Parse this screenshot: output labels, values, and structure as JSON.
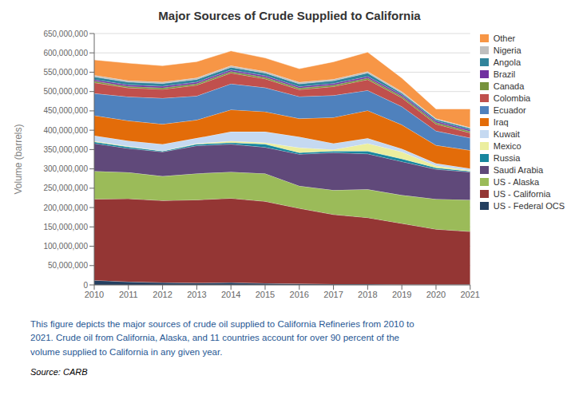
{
  "chart_data": {
    "type": "area",
    "title": "Major Sources of Crude Supplied to California",
    "y_label": "Volume (barrels)",
    "x": [
      2010,
      2011,
      2012,
      2013,
      2014,
      2015,
      2016,
      2017,
      2018,
      2019,
      2020,
      2021
    ],
    "series": [
      {
        "name": "US - Federal OCS",
        "color": "#243F60",
        "values": [
          12000000,
          8000000,
          6000000,
          5000000,
          6000000,
          4000000,
          3000000,
          2000000,
          2000000,
          1000000,
          1000000,
          1000000
        ]
      },
      {
        "name": "US - California",
        "color": "#943634",
        "values": [
          210000000,
          215000000,
          212000000,
          215000000,
          218000000,
          212000000,
          195000000,
          180000000,
          172000000,
          158000000,
          143000000,
          137000000
        ]
      },
      {
        "name": "US - Alaska",
        "color": "#9BBB59",
        "values": [
          72000000,
          68000000,
          63000000,
          68000000,
          68000000,
          72000000,
          58000000,
          63000000,
          73000000,
          73000000,
          78000000,
          82000000
        ]
      },
      {
        "name": "Saudi Arabia",
        "color": "#60497A",
        "values": [
          72000000,
          62000000,
          63000000,
          72000000,
          72000000,
          68000000,
          82000000,
          97000000,
          92000000,
          87000000,
          77000000,
          72000000
        ]
      },
      {
        "name": "Russia",
        "color": "#17869E",
        "values": [
          4000000,
          4000000,
          2000000,
          4000000,
          4000000,
          8000000,
          4000000,
          4000000,
          7000000,
          7000000,
          4000000,
          2000000
        ]
      },
      {
        "name": "Mexico",
        "color": "#EBEE9E",
        "values": [
          2000000,
          1500000,
          800000,
          1500000,
          4000000,
          4000000,
          13000000,
          4000000,
          20000000,
          18000000,
          5000000,
          2000000
        ]
      },
      {
        "name": "Kuwait",
        "color": "#C5D9F1",
        "values": [
          14000000,
          14000000,
          17000000,
          14000000,
          24000000,
          28000000,
          28000000,
          16000000,
          13000000,
          8000000,
          6000000,
          5000000
        ]
      },
      {
        "name": "Iraq",
        "color": "#E36C09",
        "values": [
          52000000,
          52000000,
          52000000,
          47000000,
          57000000,
          52000000,
          47000000,
          67000000,
          72000000,
          62000000,
          47000000,
          47000000
        ]
      },
      {
        "name": "Ecuador",
        "color": "#4F81BD",
        "values": [
          57000000,
          62000000,
          67000000,
          62000000,
          67000000,
          62000000,
          57000000,
          57000000,
          52000000,
          47000000,
          37000000,
          32000000
        ]
      },
      {
        "name": "Colombia",
        "color": "#C0504D",
        "values": [
          28000000,
          23000000,
          23000000,
          28000000,
          28000000,
          23000000,
          18000000,
          23000000,
          28000000,
          23000000,
          18000000,
          13000000
        ]
      },
      {
        "name": "Canada",
        "color": "#76923C",
        "values": [
          4000000,
          4000000,
          4000000,
          4000000,
          4000000,
          4000000,
          4000000,
          4000000,
          4000000,
          4000000,
          4000000,
          4000000
        ]
      },
      {
        "name": "Brazil",
        "color": "#7030A0",
        "values": [
          4000000,
          4000000,
          4000000,
          4000000,
          4000000,
          4000000,
          4000000,
          4000000,
          4000000,
          4000000,
          4000000,
          4000000
        ]
      },
      {
        "name": "Angola",
        "color": "#31849B",
        "values": [
          7000000,
          7000000,
          7000000,
          7000000,
          7000000,
          7000000,
          7000000,
          7000000,
          9000000,
          4000000,
          4000000,
          4000000
        ]
      },
      {
        "name": "Nigeria",
        "color": "#BFBFBF",
        "values": [
          4000000,
          4000000,
          4000000,
          4000000,
          4000000,
          4000000,
          4000000,
          4000000,
          4000000,
          4000000,
          2000000,
          2000000
        ]
      },
      {
        "name": "Other",
        "color": "#F79646",
        "values": [
          40000000,
          45000000,
          42000000,
          42000000,
          38000000,
          35000000,
          35000000,
          45000000,
          50000000,
          35000000,
          25000000,
          48000000
        ]
      }
    ],
    "xlim": [
      2010,
      2021
    ],
    "xticks": [
      2010,
      2011,
      2012,
      2013,
      2014,
      2015,
      2016,
      2017,
      2018,
      2019,
      2020,
      2021
    ],
    "ylim": [
      0,
      650000000
    ],
    "yticks": [
      0,
      {
        "value": 50000000,
        "label": "50,000,000"
      },
      {
        "value": 100000000,
        "label": "100,000,000"
      },
      {
        "value": 150000000,
        "label": "150,000,000"
      },
      {
        "value": 200000000,
        "label": "200,000,000"
      },
      {
        "value": 250000000,
        "label": "250,000,000"
      },
      {
        "value": 300000000,
        "label": "300,000,000"
      },
      {
        "value": 350000000,
        "label": "350,000,000"
      },
      {
        "value": 400000000,
        "label": "400,000,000"
      },
      {
        "value": 450000000,
        "label": "450,000,000"
      },
      {
        "value": 500000000,
        "label": "500,000,000"
      },
      {
        "value": 550000000,
        "label": "550,000,000"
      },
      {
        "value": 600000000,
        "label": "600,000,000"
      },
      {
        "value": 650000000,
        "label": "650,000,000"
      }
    ],
    "stacked": true,
    "grid": true,
    "legend": "right",
    "annotations": [
      "This figure depicts the major sources of crude oil supplied to California Refineries from 2010 to\n2021. Crude oil from California, Alaska, and 11 countries account for over 90 percent of the\nvolume supplied to California in any given year.",
      "Source: CARB"
    ]
  }
}
